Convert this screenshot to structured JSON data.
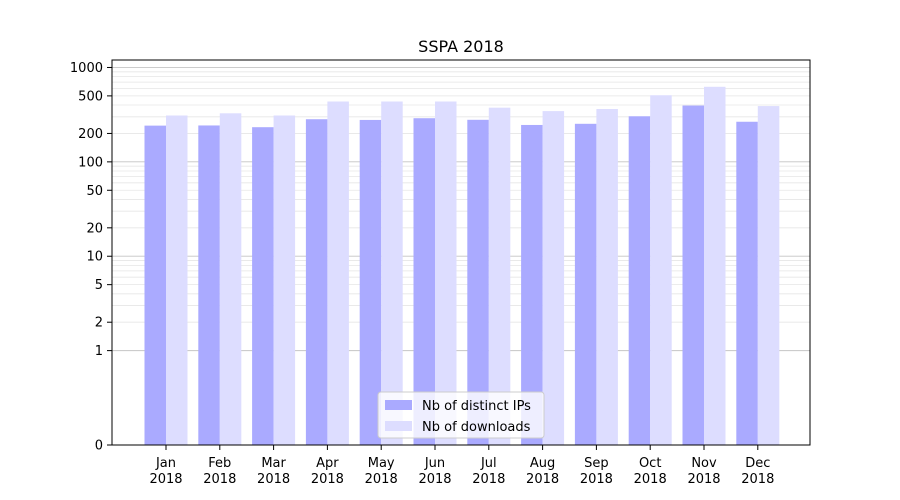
{
  "chart_data": {
    "type": "bar",
    "title": "SSPA 2018",
    "xlabel": "",
    "ylabel": "",
    "y_scale": "symlog",
    "ylim": [
      0,
      1200
    ],
    "y_ticks": [
      0,
      1,
      2,
      5,
      10,
      20,
      50,
      100,
      200,
      500,
      1000
    ],
    "grid": true,
    "legend_position": "bottom-center",
    "categories": [
      [
        "Jan",
        "2018"
      ],
      [
        "Feb",
        "2018"
      ],
      [
        "Mar",
        "2018"
      ],
      [
        "Apr",
        "2018"
      ],
      [
        "May",
        "2018"
      ],
      [
        "Jun",
        "2018"
      ],
      [
        "Jul",
        "2018"
      ],
      [
        "Aug",
        "2018"
      ],
      [
        "Sep",
        "2018"
      ],
      [
        "Oct",
        "2018"
      ],
      [
        "Nov",
        "2018"
      ],
      [
        "Dec",
        "2018"
      ]
    ],
    "series": [
      {
        "name": "Nb of distinct IPs",
        "color": "#aaaaff",
        "values": [
          242,
          243,
          233,
          283,
          278,
          290,
          279,
          246,
          253,
          304,
          395,
          266
        ]
      },
      {
        "name": "Nb of downloads",
        "color": "#ddddff",
        "values": [
          310,
          327,
          310,
          436,
          436,
          436,
          375,
          345,
          363,
          508,
          624,
          390
        ]
      }
    ]
  }
}
